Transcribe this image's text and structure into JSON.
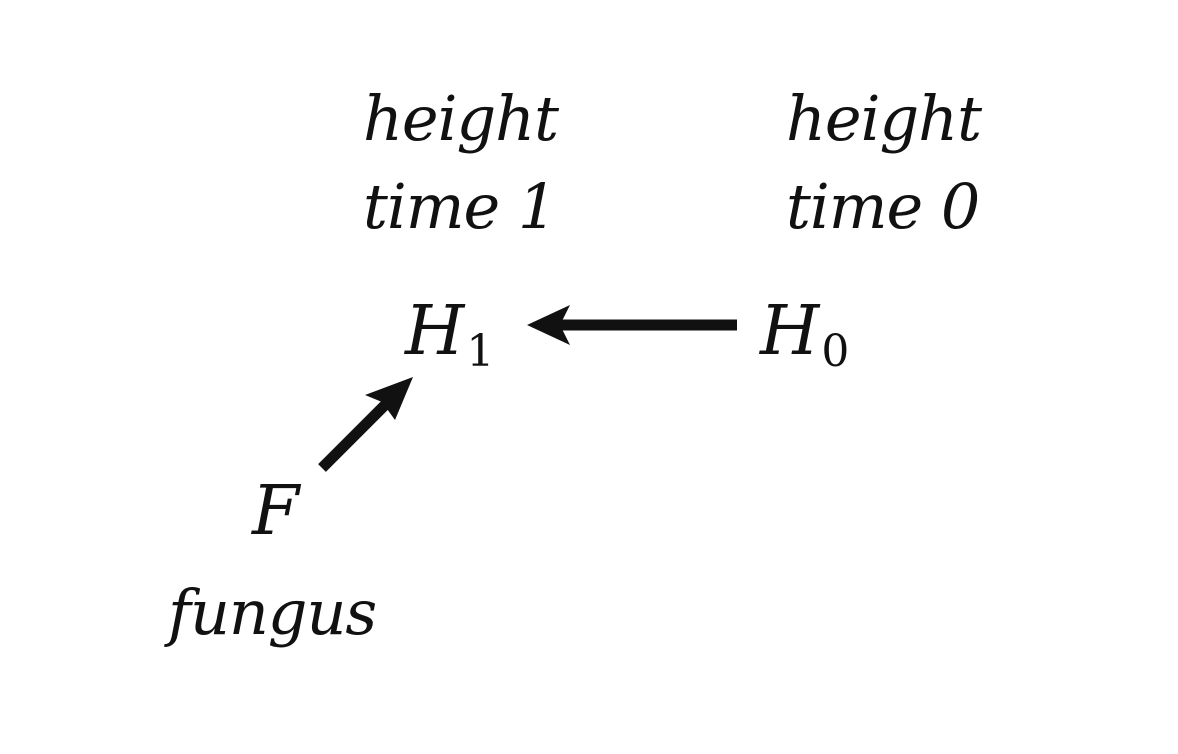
{
  "diagram": {
    "labels": {
      "h1_top": "height",
      "h1_bottom": "time 1",
      "h0_top": "height",
      "h0_bottom": "time 0",
      "fungus": "fungus"
    },
    "nodes": {
      "h1": {
        "symbol": "H",
        "subscript": "1"
      },
      "h0": {
        "symbol": "H",
        "subscript": "0"
      },
      "f": {
        "symbol": "F"
      }
    },
    "edges": [
      {
        "from": "H0",
        "to": "H1"
      },
      {
        "from": "F",
        "to": "H1"
      }
    ],
    "colors": {
      "ink": "#111111",
      "background": "#ffffff"
    }
  }
}
